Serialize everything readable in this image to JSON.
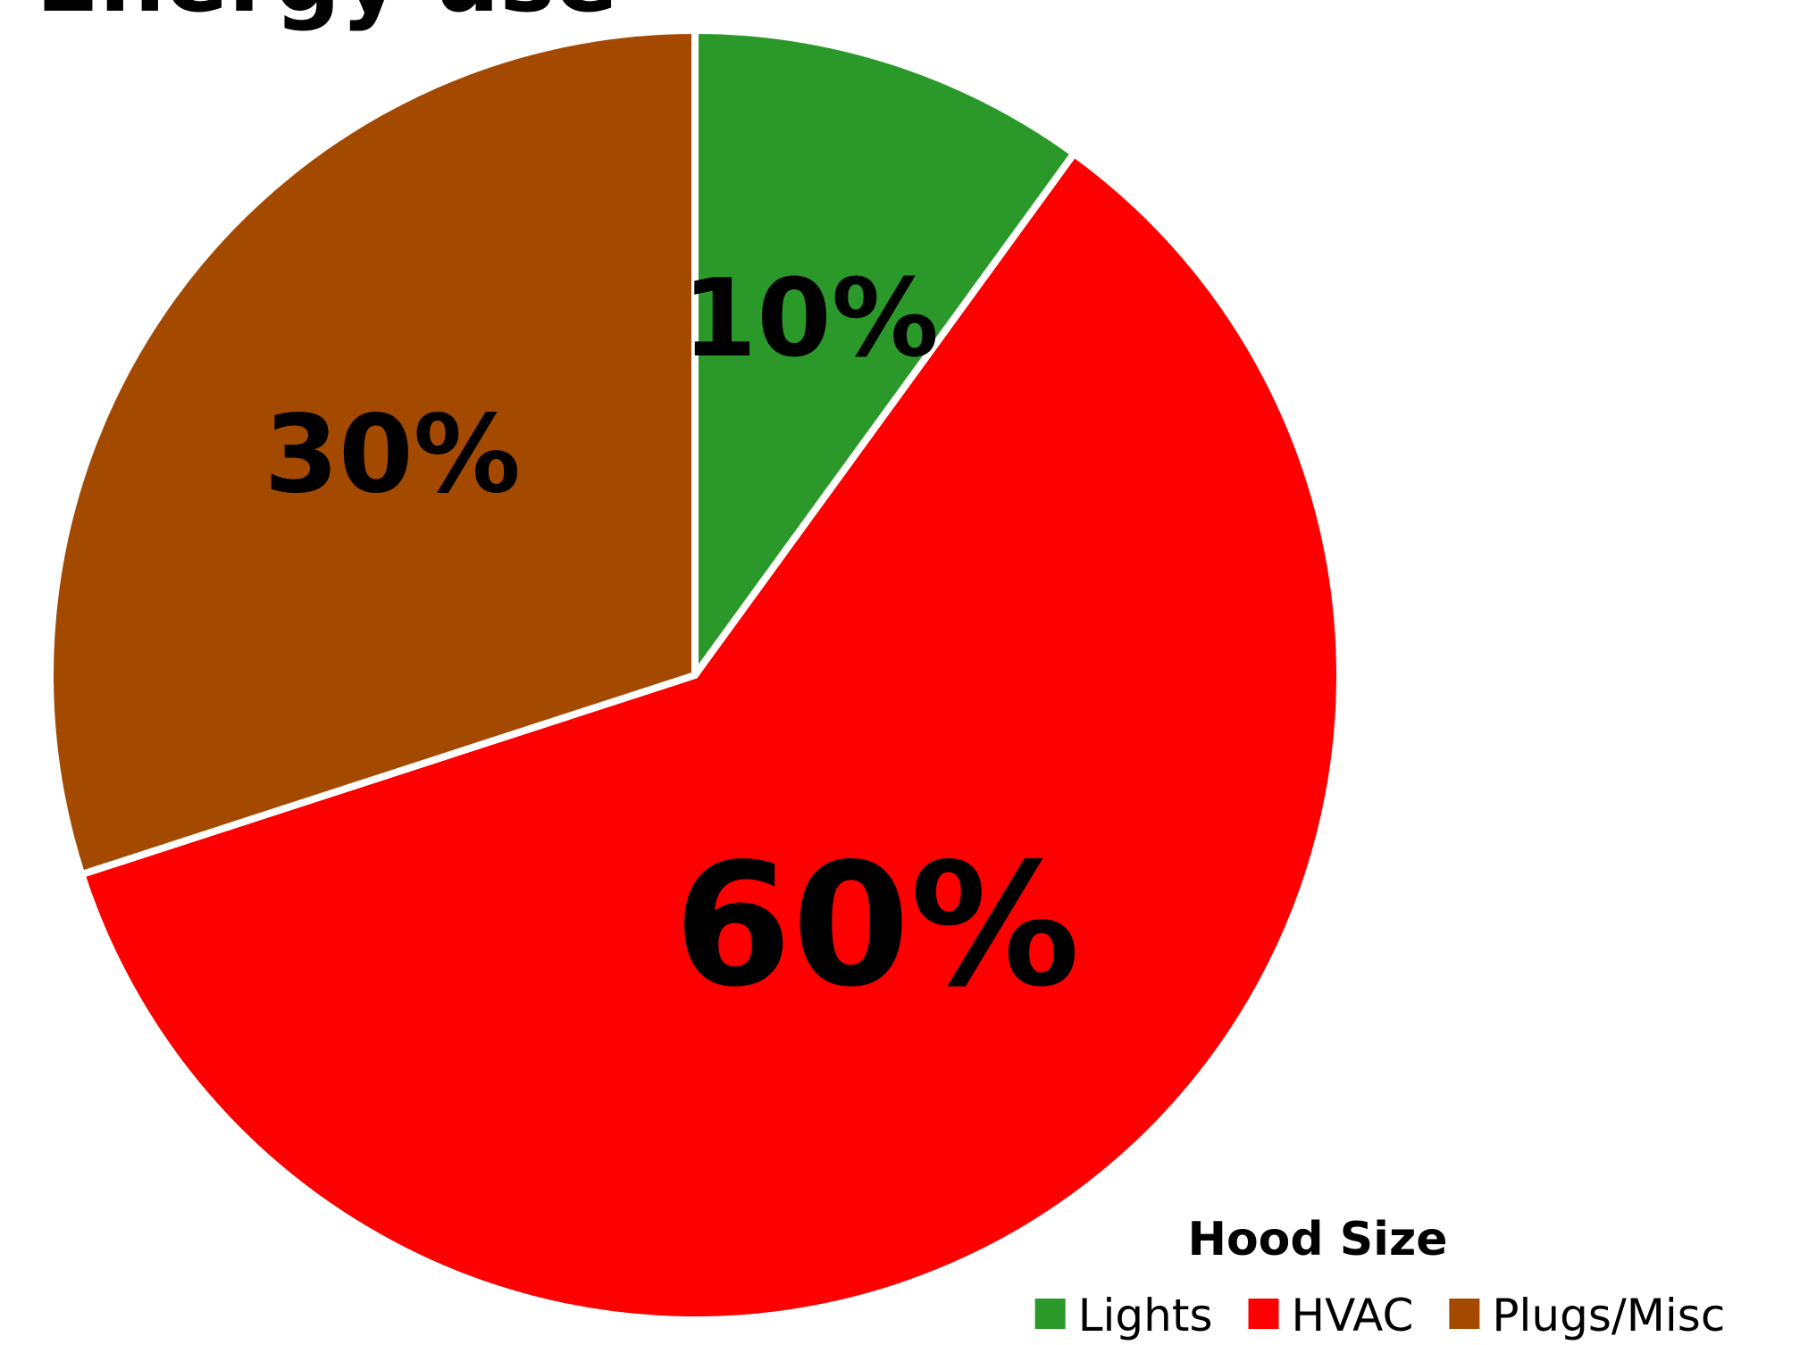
{
  "chart_data": {
    "type": "pie",
    "title": "Energy use",
    "legend_title": "Hood Size",
    "legend_position": "bottom-right",
    "slices": [
      {
        "label": "Lights",
        "value": 10,
        "display": "10%",
        "color": "#2a992a"
      },
      {
        "label": "HVAC",
        "value": 60,
        "display": "60%",
        "color": "#ff0000"
      },
      {
        "label": "Plugs/Misc",
        "value": 30,
        "display": "30%",
        "color": "#a44a00"
      }
    ]
  }
}
